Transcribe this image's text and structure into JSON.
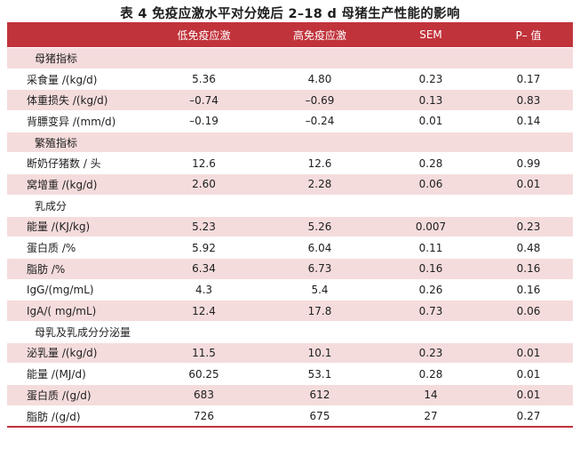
{
  "title": "表 4   免疫应激水平对分娩后 2–18 d 母猪生产性能的影响",
  "table": {
    "headers": [
      "",
      "低免疫应激",
      "高免疫应激",
      "SEM",
      "P– 值"
    ],
    "rows": [
      {
        "type": "category",
        "label": "母猪指标"
      },
      {
        "type": "data",
        "label": "采食量 /(kg/d)",
        "low": "5.36",
        "high": "4.80",
        "sem": "0.23",
        "p": "0.17"
      },
      {
        "type": "data",
        "label": "体重损失 /(kg/d)",
        "low": "–0.74",
        "high": "–0.69",
        "sem": "0.13",
        "p": "0.83"
      },
      {
        "type": "data",
        "label": "背膘变异 /(mm/d)",
        "low": "–0.19",
        "high": "–0.24",
        "sem": "0.01",
        "p": "0.14"
      },
      {
        "type": "category",
        "label": "繁殖指标"
      },
      {
        "type": "data",
        "label": "断奶仔猪数 / 头",
        "low": "12.6",
        "high": "12.6",
        "sem": "0.28",
        "p": "0.99"
      },
      {
        "type": "data",
        "label": "窝增重 /(kg/d)",
        "low": "2.60",
        "high": "2.28",
        "sem": "0.06",
        "p": "0.01"
      },
      {
        "type": "category",
        "label": "乳成分"
      },
      {
        "type": "data",
        "label": "能量 /(KJ/kg)",
        "low": "5.23",
        "high": "5.26",
        "sem": "0.007",
        "p": "0.23"
      },
      {
        "type": "data",
        "label": "蛋白质 /%",
        "low": "5.92",
        "high": "6.04",
        "sem": "0.11",
        "p": "0.48"
      },
      {
        "type": "data",
        "label": "脂肪 /%",
        "low": "6.34",
        "high": "6.73",
        "sem": "0.16",
        "p": "0.16"
      },
      {
        "type": "data",
        "label": "IgG/(mg/mL)",
        "low": "4.3",
        "high": "5.4",
        "sem": "0.26",
        "p": "0.16"
      },
      {
        "type": "data",
        "label": "IgA/( mg/mL)",
        "low": "12.4",
        "high": "17.8",
        "sem": "0.73",
        "p": "0.06"
      },
      {
        "type": "category",
        "label": "母乳及乳成分分泌量"
      },
      {
        "type": "data",
        "label": "泌乳量 /(kg/d)",
        "low": "11.5",
        "high": "10.1",
        "sem": "0.23",
        "p": "0.01"
      },
      {
        "type": "data",
        "label": "能量 /(MJ/d)",
        "low": "60.25",
        "high": "53.1",
        "sem": "0.28",
        "p": "0.01"
      },
      {
        "type": "data",
        "label": "蛋白质 /(g/d)",
        "low": "683",
        "high": "612",
        "sem": "14",
        "p": "0.01"
      },
      {
        "type": "data",
        "label": "脂肪 /(g/d)",
        "low": "726",
        "high": "675",
        "sem": "27",
        "p": "0.27"
      }
    ]
  },
  "colors": {
    "header_bg": "#c1333b",
    "stripe": "#f5dcdc",
    "header_text": "#ffffff"
  }
}
